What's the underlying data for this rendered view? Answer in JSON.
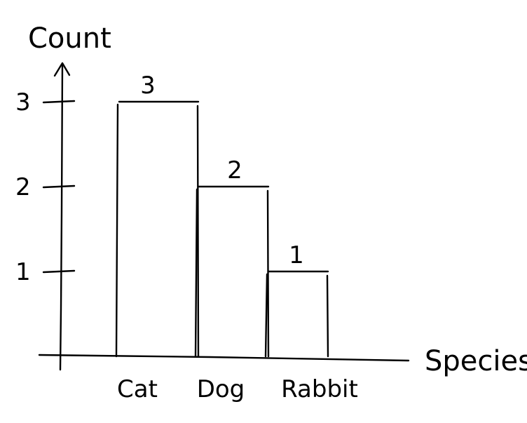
{
  "chart_data": {
    "type": "bar",
    "categories": [
      "Cat",
      "Dog",
      "Rabbit"
    ],
    "values": [
      3,
      2,
      1
    ],
    "data_labels": [
      "3",
      "2",
      "1"
    ],
    "xlabel": "Species",
    "ylabel": "Count",
    "yticks": [
      1,
      2,
      3
    ],
    "ytick_labels": [
      "1",
      "2",
      "3"
    ],
    "ylim": [
      0,
      3
    ],
    "grid": false,
    "legend": "none",
    "style": "hand-drawn"
  },
  "colors": {
    "ink": "#000000",
    "background": "#ffffff"
  }
}
